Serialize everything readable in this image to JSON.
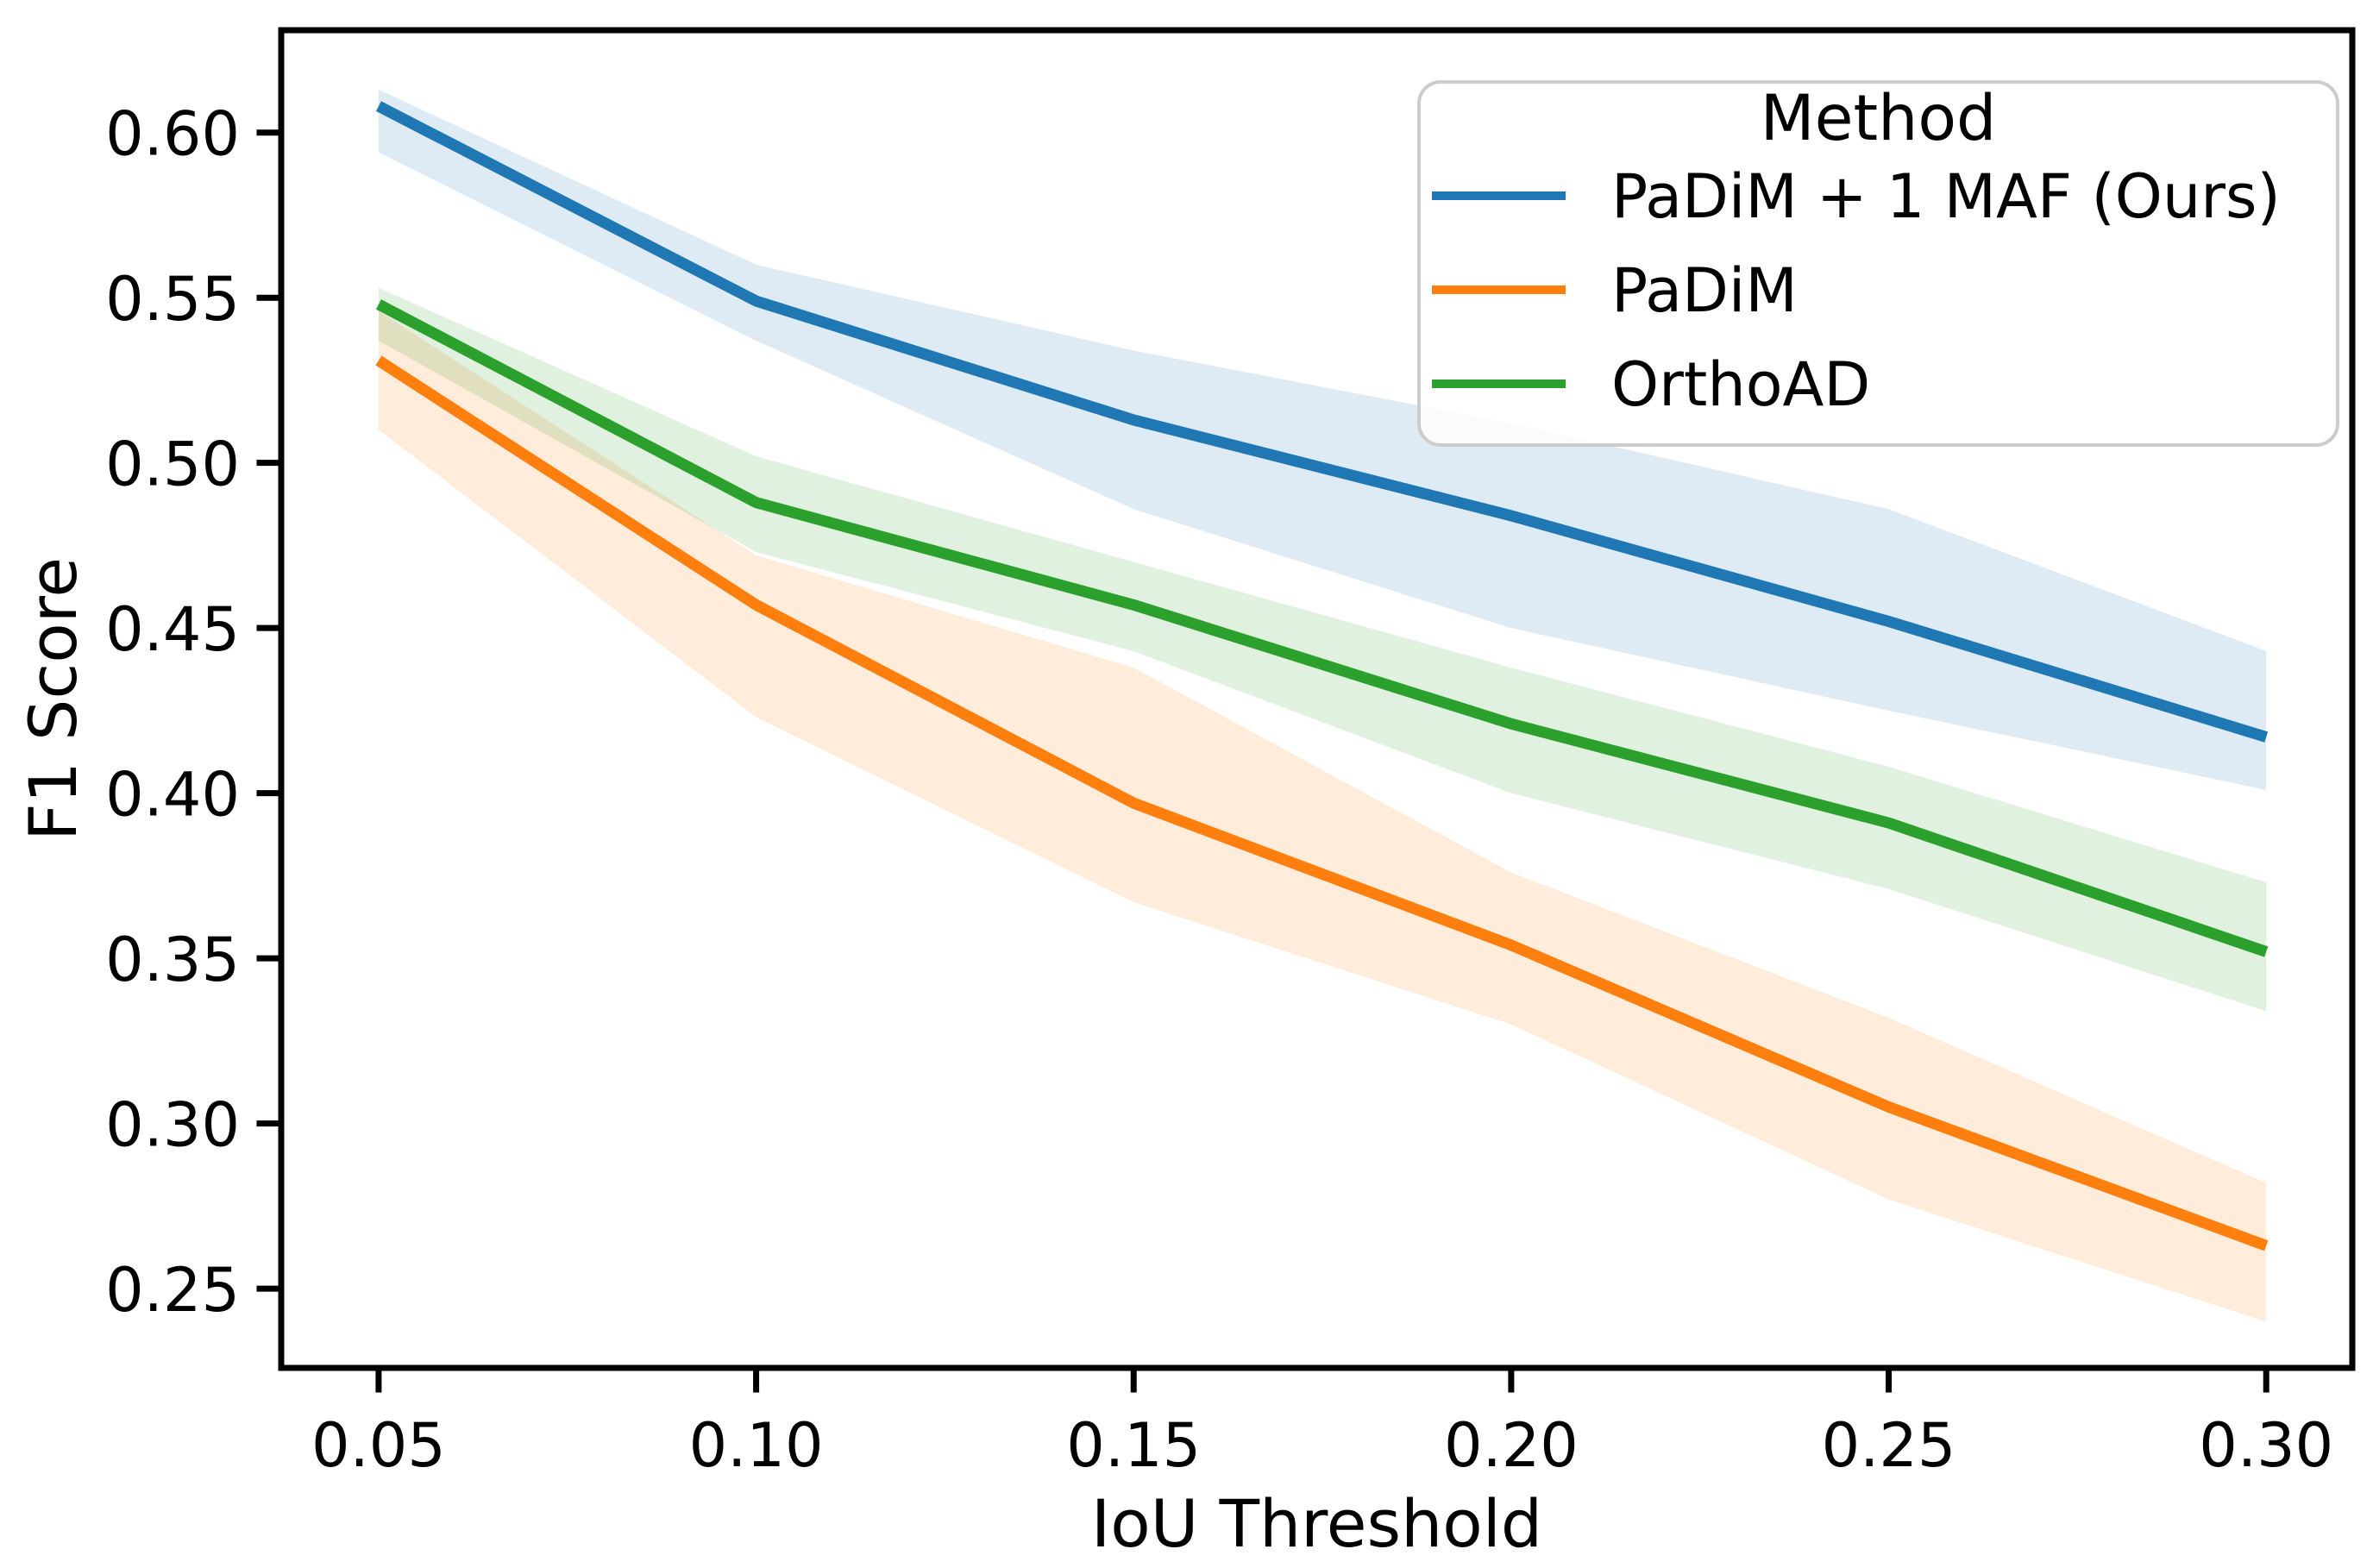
{
  "figure": {
    "background": "#ffffff",
    "text_color": "#000000",
    "spine_color": "#000000"
  },
  "chart_data": {
    "type": "line",
    "title": "",
    "xlabel": "IoU Threshold",
    "ylabel": "F1 Score",
    "xlim": [
      0.0371,
      0.3114
    ],
    "ylim": [
      0.226,
      0.631
    ],
    "grid": false,
    "legend": {
      "title": "Method",
      "position": "upper right"
    },
    "x": [
      0.05,
      0.1,
      0.15,
      0.2,
      0.25,
      0.3
    ],
    "xtick_labels": [
      "0.05",
      "0.10",
      "0.15",
      "0.20",
      "0.25",
      "0.30"
    ],
    "ytick_values": [
      0.25,
      0.3,
      0.35,
      0.4,
      0.45,
      0.5,
      0.55,
      0.6
    ],
    "ytick_labels": [
      "0.25",
      "0.30",
      "0.35",
      "0.40",
      "0.45",
      "0.50",
      "0.55",
      "0.60"
    ],
    "band_opacity": 0.15,
    "series": [
      {
        "name": "PaDiM + 1 MAF (Ours)",
        "color": "#1f77b4",
        "values": [
          0.608,
          0.549,
          0.513,
          0.484,
          0.452,
          0.417
        ],
        "band_low": [
          0.594,
          0.537,
          0.486,
          0.45,
          0.425,
          0.401
        ],
        "band_high": [
          0.613,
          0.56,
          0.534,
          0.512,
          0.486,
          0.443
        ]
      },
      {
        "name": "PaDiM",
        "color": "#ff7f0e",
        "values": [
          0.531,
          0.457,
          0.397,
          0.354,
          0.305,
          0.263
        ],
        "band_low": [
          0.51,
          0.423,
          0.367,
          0.33,
          0.277,
          0.24
        ],
        "band_high": [
          0.546,
          0.472,
          0.438,
          0.376,
          0.332,
          0.282
        ]
      },
      {
        "name": "OrthoAD",
        "color": "#2ca02c",
        "values": [
          0.548,
          0.488,
          0.457,
          0.421,
          0.391,
          0.352
        ],
        "band_low": [
          0.537,
          0.473,
          0.443,
          0.4,
          0.371,
          0.334
        ],
        "band_high": [
          0.553,
          0.502,
          0.47,
          0.438,
          0.408,
          0.373
        ]
      }
    ]
  }
}
